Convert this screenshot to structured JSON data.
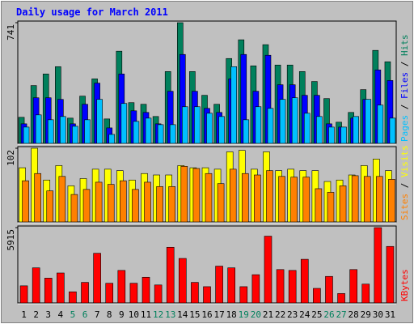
{
  "title": "Daily usage for March 2011",
  "legend_separator": " / ",
  "chart_data": [
    {
      "type": "bar",
      "ylim": [
        0,
        741
      ],
      "yticks": [
        741
      ],
      "series": [
        {
          "name": "Hits",
          "color": "#00805c",
          "values": [
            160,
            355,
            426,
            471,
            155,
            290,
            396,
            150,
            566,
            250,
            240,
            165,
            441,
            741,
            441,
            295,
            240,
            521,
            636,
            476,
            606,
            481,
            481,
            441,
            380,
            275,
            130,
            190,
            330,
            571,
            501
          ]
        },
        {
          "name": "Files",
          "color": "#0000ff",
          "values": [
            120,
            280,
            280,
            270,
            120,
            240,
            370,
            95,
            426,
            200,
            190,
            120,
            320,
            546,
            320,
            215,
            190,
            396,
            546,
            320,
            541,
            360,
            360,
            295,
            295,
            120,
            100,
            155,
            270,
            451,
            386
          ]
        },
        {
          "name": "Pages",
          "color": "#00c0ff",
          "values": [
            100,
            175,
            145,
            165,
            105,
            145,
            270,
            55,
            245,
            135,
            155,
            115,
            115,
            225,
            225,
            185,
            165,
            471,
            145,
            225,
            215,
            270,
            280,
            185,
            165,
            100,
            100,
            165,
            270,
            235,
            155
          ]
        }
      ]
    },
    {
      "type": "bar",
      "ylim": [
        0,
        102
      ],
      "yticks": [
        102
      ],
      "series": [
        {
          "name": "Visits",
          "color": "#ffff00",
          "values": [
            75,
            102,
            58,
            78,
            50,
            60,
            73,
            73,
            71,
            58,
            67,
            65,
            65,
            78,
            75,
            75,
            73,
            97,
            99,
            73,
            97,
            71,
            73,
            71,
            71,
            56,
            58,
            65,
            78,
            87,
            71
          ]
        },
        {
          "name": "Sites",
          "color": "#ff8000",
          "values": [
            57,
            67,
            43,
            63,
            38,
            45,
            55,
            52,
            57,
            45,
            55,
            49,
            49,
            77,
            74,
            67,
            53,
            73,
            67,
            65,
            71,
            63,
            62,
            62,
            46,
            41,
            50,
            64,
            63,
            63,
            59
          ]
        }
      ]
    },
    {
      "type": "bar",
      "ylim": [
        0,
        5915
      ],
      "yticks": [
        5915
      ],
      "categories": [
        "1",
        "2",
        "3",
        "4",
        "5",
        "6",
        "7",
        "8",
        "9",
        "10",
        "11",
        "12",
        "13",
        "14",
        "15",
        "16",
        "17",
        "18",
        "19",
        "20",
        "21",
        "22",
        "23",
        "24",
        "25",
        "26",
        "27",
        "28",
        "29",
        "30",
        "31"
      ],
      "category_colors": [
        "#000000",
        "#000000",
        "#000000",
        "#000000",
        "#00805c",
        "#00805c",
        "#000000",
        "#000000",
        "#000000",
        "#000000",
        "#000000",
        "#00805c",
        "#00805c",
        "#000000",
        "#000000",
        "#000000",
        "#000000",
        "#000000",
        "#00805c",
        "#00805c",
        "#000000",
        "#000000",
        "#000000",
        "#000000",
        "#000000",
        "#00805c",
        "#00805c",
        "#000000",
        "#000000",
        "#000000",
        "#000000"
      ],
      "series": [
        {
          "name": "KBytes",
          "color": "#ff0000",
          "values": [
            1344,
            2756,
            1949,
            2353,
            874,
            1613,
            3899,
            1546,
            2554,
            1546,
            2017,
            1412,
            4370,
            3495,
            1613,
            1277,
            2890,
            2756,
            1277,
            2218,
            5243,
            2621,
            2554,
            3428,
            1143,
            2084,
            739,
            2621,
            1479,
            5915,
            4437
          ]
        }
      ]
    }
  ]
}
